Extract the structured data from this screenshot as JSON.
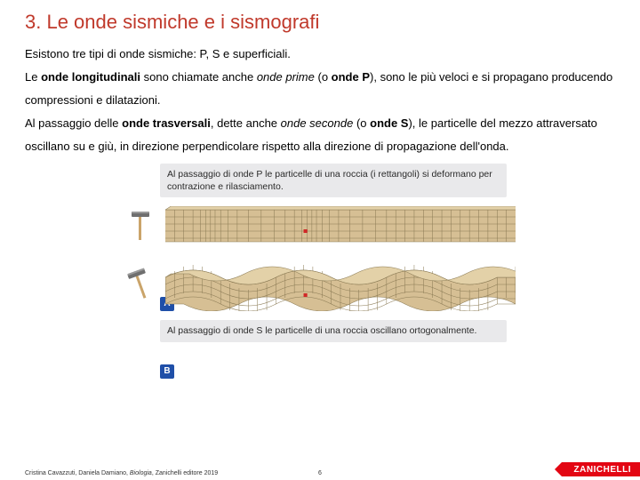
{
  "title_color": "#c0392b",
  "title": "3. Le onde sismiche e i sismografi",
  "paragraph_html": "Esistono tre tipi di onde sismiche: P, S e superficiali.<br>Le <b>onde longitudinali</b> sono chiamate anche <i>onde prime</i> (o <b>onde P</b>), sono le più veloci e si propagano producendo compressioni e dilatazioni.<br>Al passaggio delle <b>onde trasversali</b>, dette anche <i>onde seconde</i> (o <b>onde S</b>), le particelle del mezzo attraversato oscillano su e giù, in direzione perpendicolare rispetto alla direzione di propagazione dell'onda.",
  "caption_top": "Al passaggio di onde P le particelle di una roccia (i rettangoli) si deformano per contrazione e rilasciamento.",
  "caption_bottom": "Al passaggio di onde S le particelle di una roccia oscillano ortogonalmente.",
  "label_a": "A",
  "label_b": "B",
  "rock_fill": "#d6bf94",
  "rock_stroke": "#8a7a54",
  "rock_side": "#b7a173",
  "hammer_handle": "#caa46a",
  "hammer_head": "#6f6f6f",
  "hammer_head_hi": "#9a9a9a",
  "marker_color": "#d02828",
  "badge_bg": "#1f4fa8",
  "footer_credit": "Cristina Cavazzuti, Daniela Damiano, Biologia, Zanichelli editore 2019",
  "footer_page": "6",
  "footer_brand": "ZANICHELLI",
  "brand_bg": "#e30613"
}
